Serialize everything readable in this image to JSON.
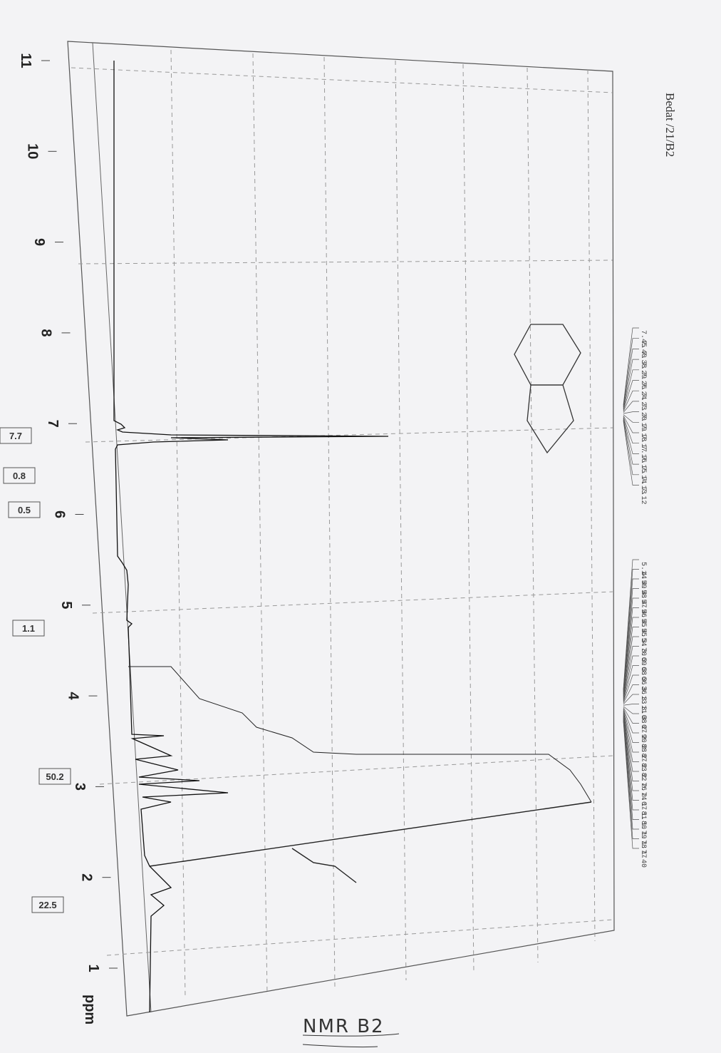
{
  "header": {
    "title": "Bedat /21/B2"
  },
  "axis": {
    "ticks": [
      "11",
      "10",
      "9",
      "8",
      "7",
      "6",
      "5",
      "4",
      "3",
      "2",
      "1"
    ],
    "unit": "ppm"
  },
  "peaks": {
    "group1": [
      "7.45",
      "7.40",
      "7.38",
      "7.29",
      "7.26",
      "7.24",
      "7.23",
      "7.20",
      "7.19",
      "7.18",
      "7.17",
      "7.16",
      "7.15",
      "7.14",
      "7.13",
      "7.12"
    ],
    "group2": [
      "5.14",
      "4.59",
      "4.58",
      "4.57",
      "4.56",
      "4.55",
      "4.55",
      "4.54",
      "3.70",
      "3.69",
      "3.68",
      "3.66",
      "3.36",
      "3.13",
      "3.11",
      "3.08",
      "3.07",
      "2.90",
      "2.88",
      "2.87",
      "2.83",
      "2.82",
      "2.76",
      "2.74",
      "2.07",
      "1.81",
      "1.80",
      "1.79",
      "1.78",
      "1.77",
      "1.40"
    ]
  },
  "integrals": [
    "7.7",
    "0.8",
    "0.5",
    "1.1",
    "50.2",
    "22.5"
  ],
  "note": "NMR B2"
}
